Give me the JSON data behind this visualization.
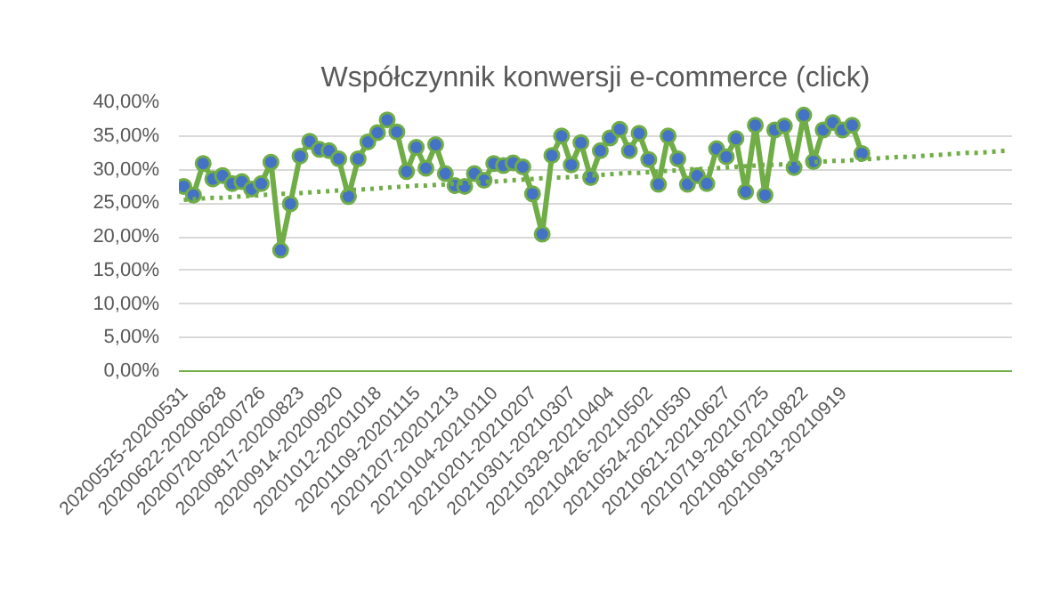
{
  "chart_data": {
    "type": "line",
    "title": "Współczynnik konwersji e-commerce (click)",
    "categories": [
      "20200525-20200531",
      null,
      null,
      null,
      "20200622-20200628",
      null,
      null,
      null,
      "20200720-20200726",
      null,
      null,
      null,
      "20200817-20200823",
      null,
      null,
      null,
      "20200914-20200920",
      null,
      null,
      null,
      "20201012-20201018",
      null,
      null,
      null,
      "20201109-20201115",
      null,
      null,
      null,
      "20201207-20201213",
      null,
      null,
      null,
      "20210104-20210110",
      null,
      null,
      null,
      "20210201-20210207",
      null,
      null,
      null,
      "20210301-20210307",
      null,
      null,
      null,
      "20210329-20210404",
      null,
      null,
      null,
      "20210426-20210502",
      null,
      null,
      null,
      "20210524-20210530",
      null,
      null,
      null,
      "20210621-20210627",
      null,
      null,
      null,
      "20210719-20210725",
      null,
      null,
      null,
      "20210816-20210822",
      null,
      null,
      null,
      "20210913-20210919",
      null,
      null,
      null,
      null,
      null,
      null,
      null,
      null,
      null,
      null,
      null,
      null,
      null,
      null,
      null,
      null,
      null
    ],
    "ylim": [
      0,
      40
    ],
    "yticks": [
      {
        "value": 0,
        "label": "0,00%"
      },
      {
        "value": 5,
        "label": "5,00%"
      },
      {
        "value": 10,
        "label": "10,00%"
      },
      {
        "value": 15,
        "label": "15,00%"
      },
      {
        "value": 20,
        "label": "20,00%"
      },
      {
        "value": 25,
        "label": "25,00%"
      },
      {
        "value": 30,
        "label": "30,00%"
      },
      {
        "value": 35,
        "label": "35,00%"
      },
      {
        "value": 40,
        "label": "40,00%"
      }
    ],
    "grid": "y",
    "marker": "circle",
    "series": [
      {
        "color": "#70ad47",
        "line_style": "solid",
        "values": [
          27.5,
          26.2,
          30.9,
          28.6,
          29.1,
          27.9,
          28.2,
          27.1,
          27.9,
          31.1,
          18.0,
          24.9,
          32.0,
          34.2,
          33.0,
          32.8,
          31.6,
          26.0,
          31.6,
          34.1,
          35.5,
          37.4,
          35.6,
          29.7,
          33.3,
          30.2,
          33.7,
          29.4,
          27.6,
          27.5,
          29.4,
          28.4,
          30.9,
          30.6,
          31.0,
          30.4,
          26.4,
          20.4,
          32.1,
          35.0,
          30.7,
          34.0,
          28.8,
          32.8,
          34.7,
          36.0,
          32.8,
          35.4,
          31.5,
          27.8,
          35.0,
          31.6,
          27.8,
          29.1,
          27.9,
          33.1,
          31.9,
          34.6,
          26.7,
          36.6,
          26.2,
          35.9,
          36.5,
          30.3,
          38.1,
          31.2,
          35.9,
          37.0,
          35.9,
          36.6,
          32.4,
          null,
          null,
          null,
          null,
          null,
          null,
          null,
          null,
          null,
          null,
          null,
          null,
          null,
          null,
          null
        ]
      },
      {
        "type": "line",
        "color": "#70ad47",
        "marker": "none",
        "line_style": "dotted",
        "values": [
          25.5,
          25.6,
          25.7,
          25.8,
          25.8,
          25.9,
          26.0,
          26.1,
          26.2,
          26.3,
          26.4,
          26.4,
          26.5,
          26.6,
          26.7,
          26.8,
          26.9,
          27.0,
          27.0,
          27.1,
          27.2,
          27.3,
          27.4,
          27.5,
          27.6,
          27.6,
          27.7,
          27.8,
          27.9,
          28.0,
          28.1,
          28.2,
          28.2,
          28.3,
          28.4,
          28.5,
          28.6,
          28.7,
          28.8,
          28.8,
          28.9,
          29.0,
          29.1,
          29.2,
          29.3,
          29.4,
          29.5,
          29.5,
          29.6,
          29.7,
          29.8,
          29.9,
          30.0,
          30.1,
          30.1,
          30.2,
          30.3,
          30.4,
          30.5,
          30.6,
          30.7,
          30.7,
          30.8,
          30.9,
          31.0,
          31.1,
          31.2,
          31.3,
          31.3,
          31.4,
          31.5,
          31.6,
          31.7,
          31.8,
          31.9,
          31.9,
          32.0,
          32.1,
          32.2,
          32.3,
          32.4,
          32.5,
          32.5,
          32.6,
          32.7,
          32.8
        ]
      }
    ]
  }
}
